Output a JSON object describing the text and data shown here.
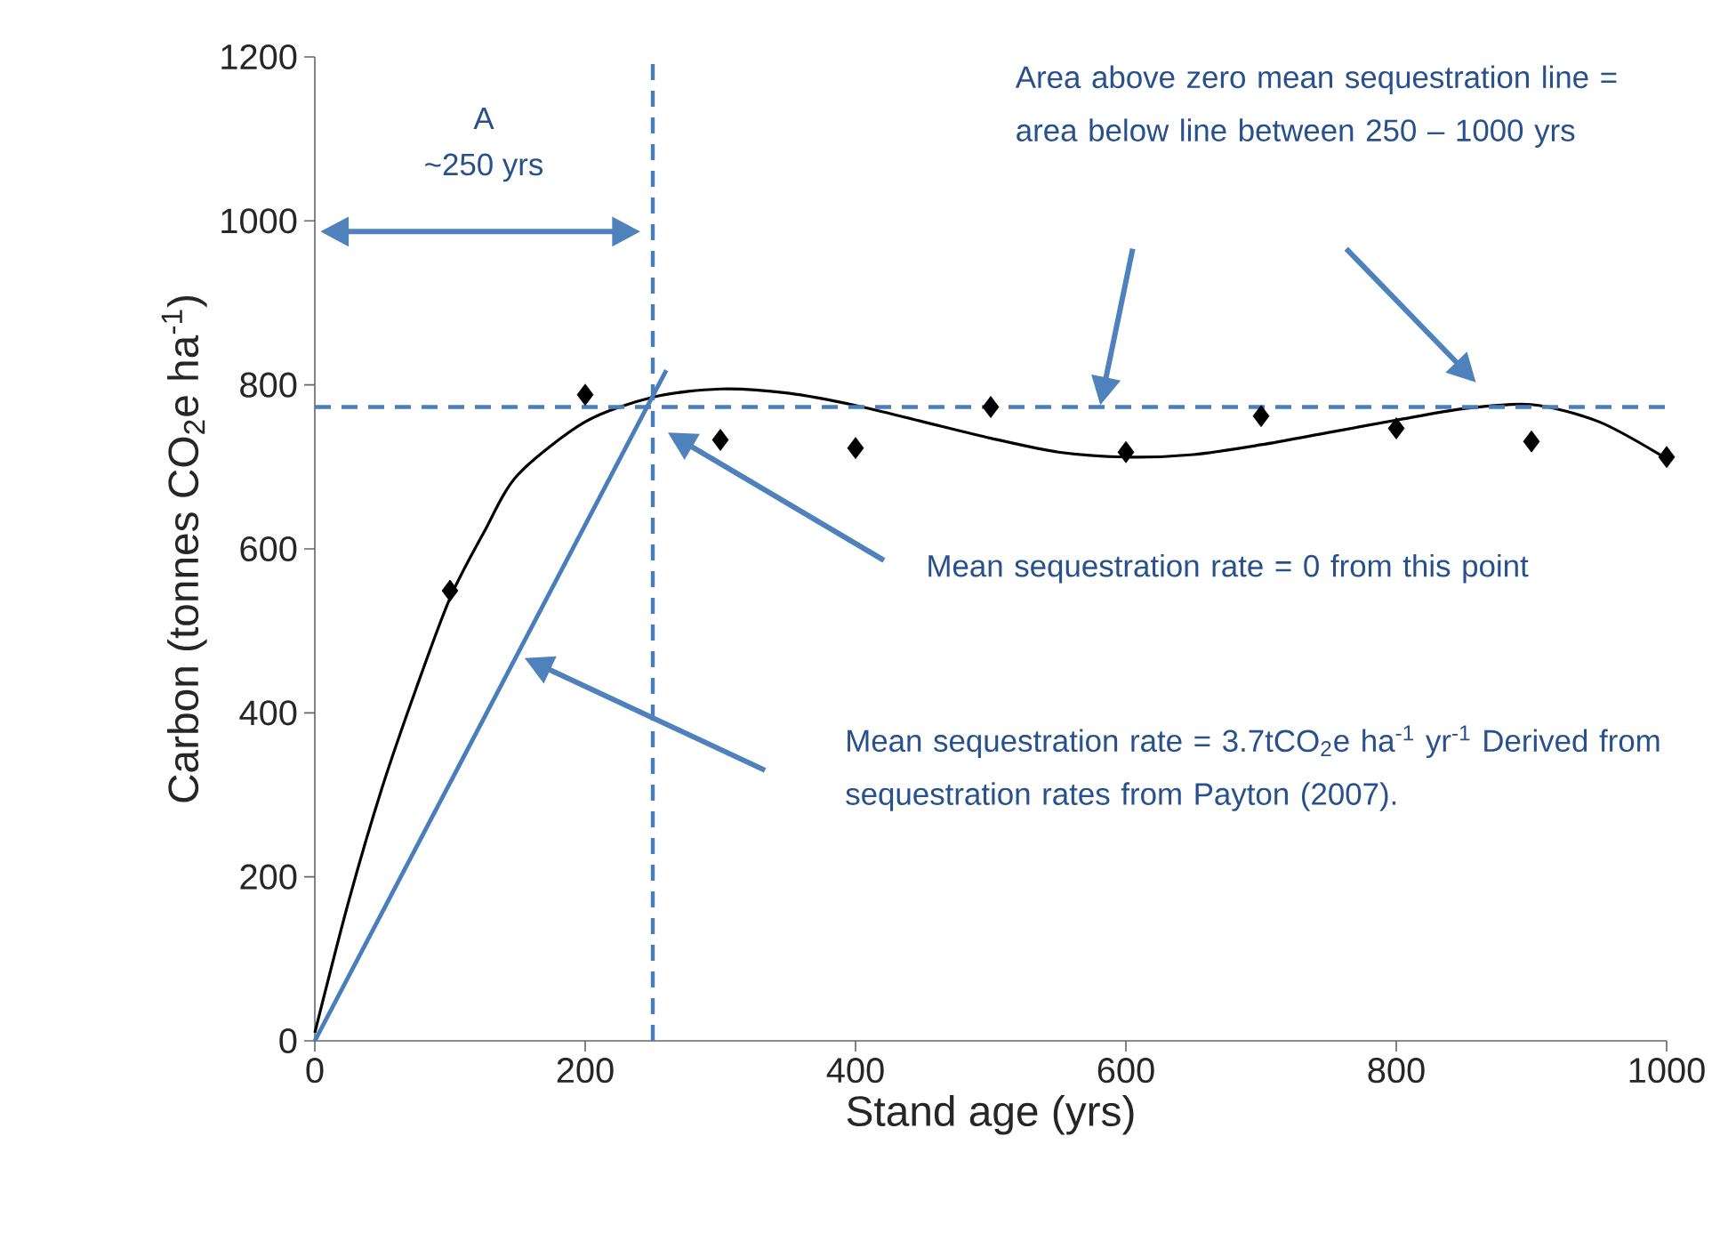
{
  "chart_data": {
    "type": "scatter",
    "xlabel": "Stand age (yrs)",
    "ylabel": "Carbon (tonnes CO$_{2}$e ha$^{-1}$)",
    "xlim": [
      0,
      1000
    ],
    "ylim": [
      0,
      1200
    ],
    "xticks": [
      0,
      200,
      400,
      600,
      800,
      1000
    ],
    "yticks": [
      0,
      200,
      400,
      600,
      800,
      1000,
      1200
    ],
    "grid": false,
    "series": [
      {
        "color": "#000000",
        "marker": "diamond",
        "x": [
          100,
          200,
          300,
          400,
          500,
          600,
          700,
          800,
          900,
          1000
        ],
        "values": [
          549,
          788,
          733,
          723,
          773,
          718,
          762,
          747,
          731,
          712
        ]
      },
      {
        "type": "line",
        "color": "#000000",
        "marker": "none",
        "x": [
          0,
          25,
          50,
          75,
          100,
          125,
          150,
          200,
          250,
          300,
          350,
          400,
          450,
          500,
          550,
          600,
          650,
          700,
          750,
          800,
          850,
          900,
          950,
          1000
        ],
        "values": [
          10,
          170,
          310,
          430,
          540,
          620,
          690,
          755,
          785,
          795,
          790,
          775,
          755,
          735,
          718,
          712,
          715,
          727,
          742,
          757,
          771,
          776,
          755,
          710
        ]
      },
      {
        "type": "line",
        "color": "#4a7ebb",
        "marker": "none",
        "x": [
          0,
          260
        ],
        "values": [
          0,
          818
        ]
      }
    ],
    "ref_lines": [
      {
        "axis": "x",
        "value": 250,
        "color": "#4a7ebb",
        "line_style": "dashed"
      },
      {
        "axis": "y",
        "value": 773,
        "color": "#4a7ebb",
        "line_style": "dashed"
      }
    ],
    "annotations": [
      "A",
      "~250 yrs",
      "Area above zero mean sequestration line = area below line between 250 – 1000 yrs",
      "Mean  sequestration  rate  =  0  from this point",
      "Mean sequestration rate = 3.7tCO$_{2}$e ha$^{-1}$ yr$^{-1}$ Derived from sequestration rates from Payton (2007)."
    ]
  }
}
